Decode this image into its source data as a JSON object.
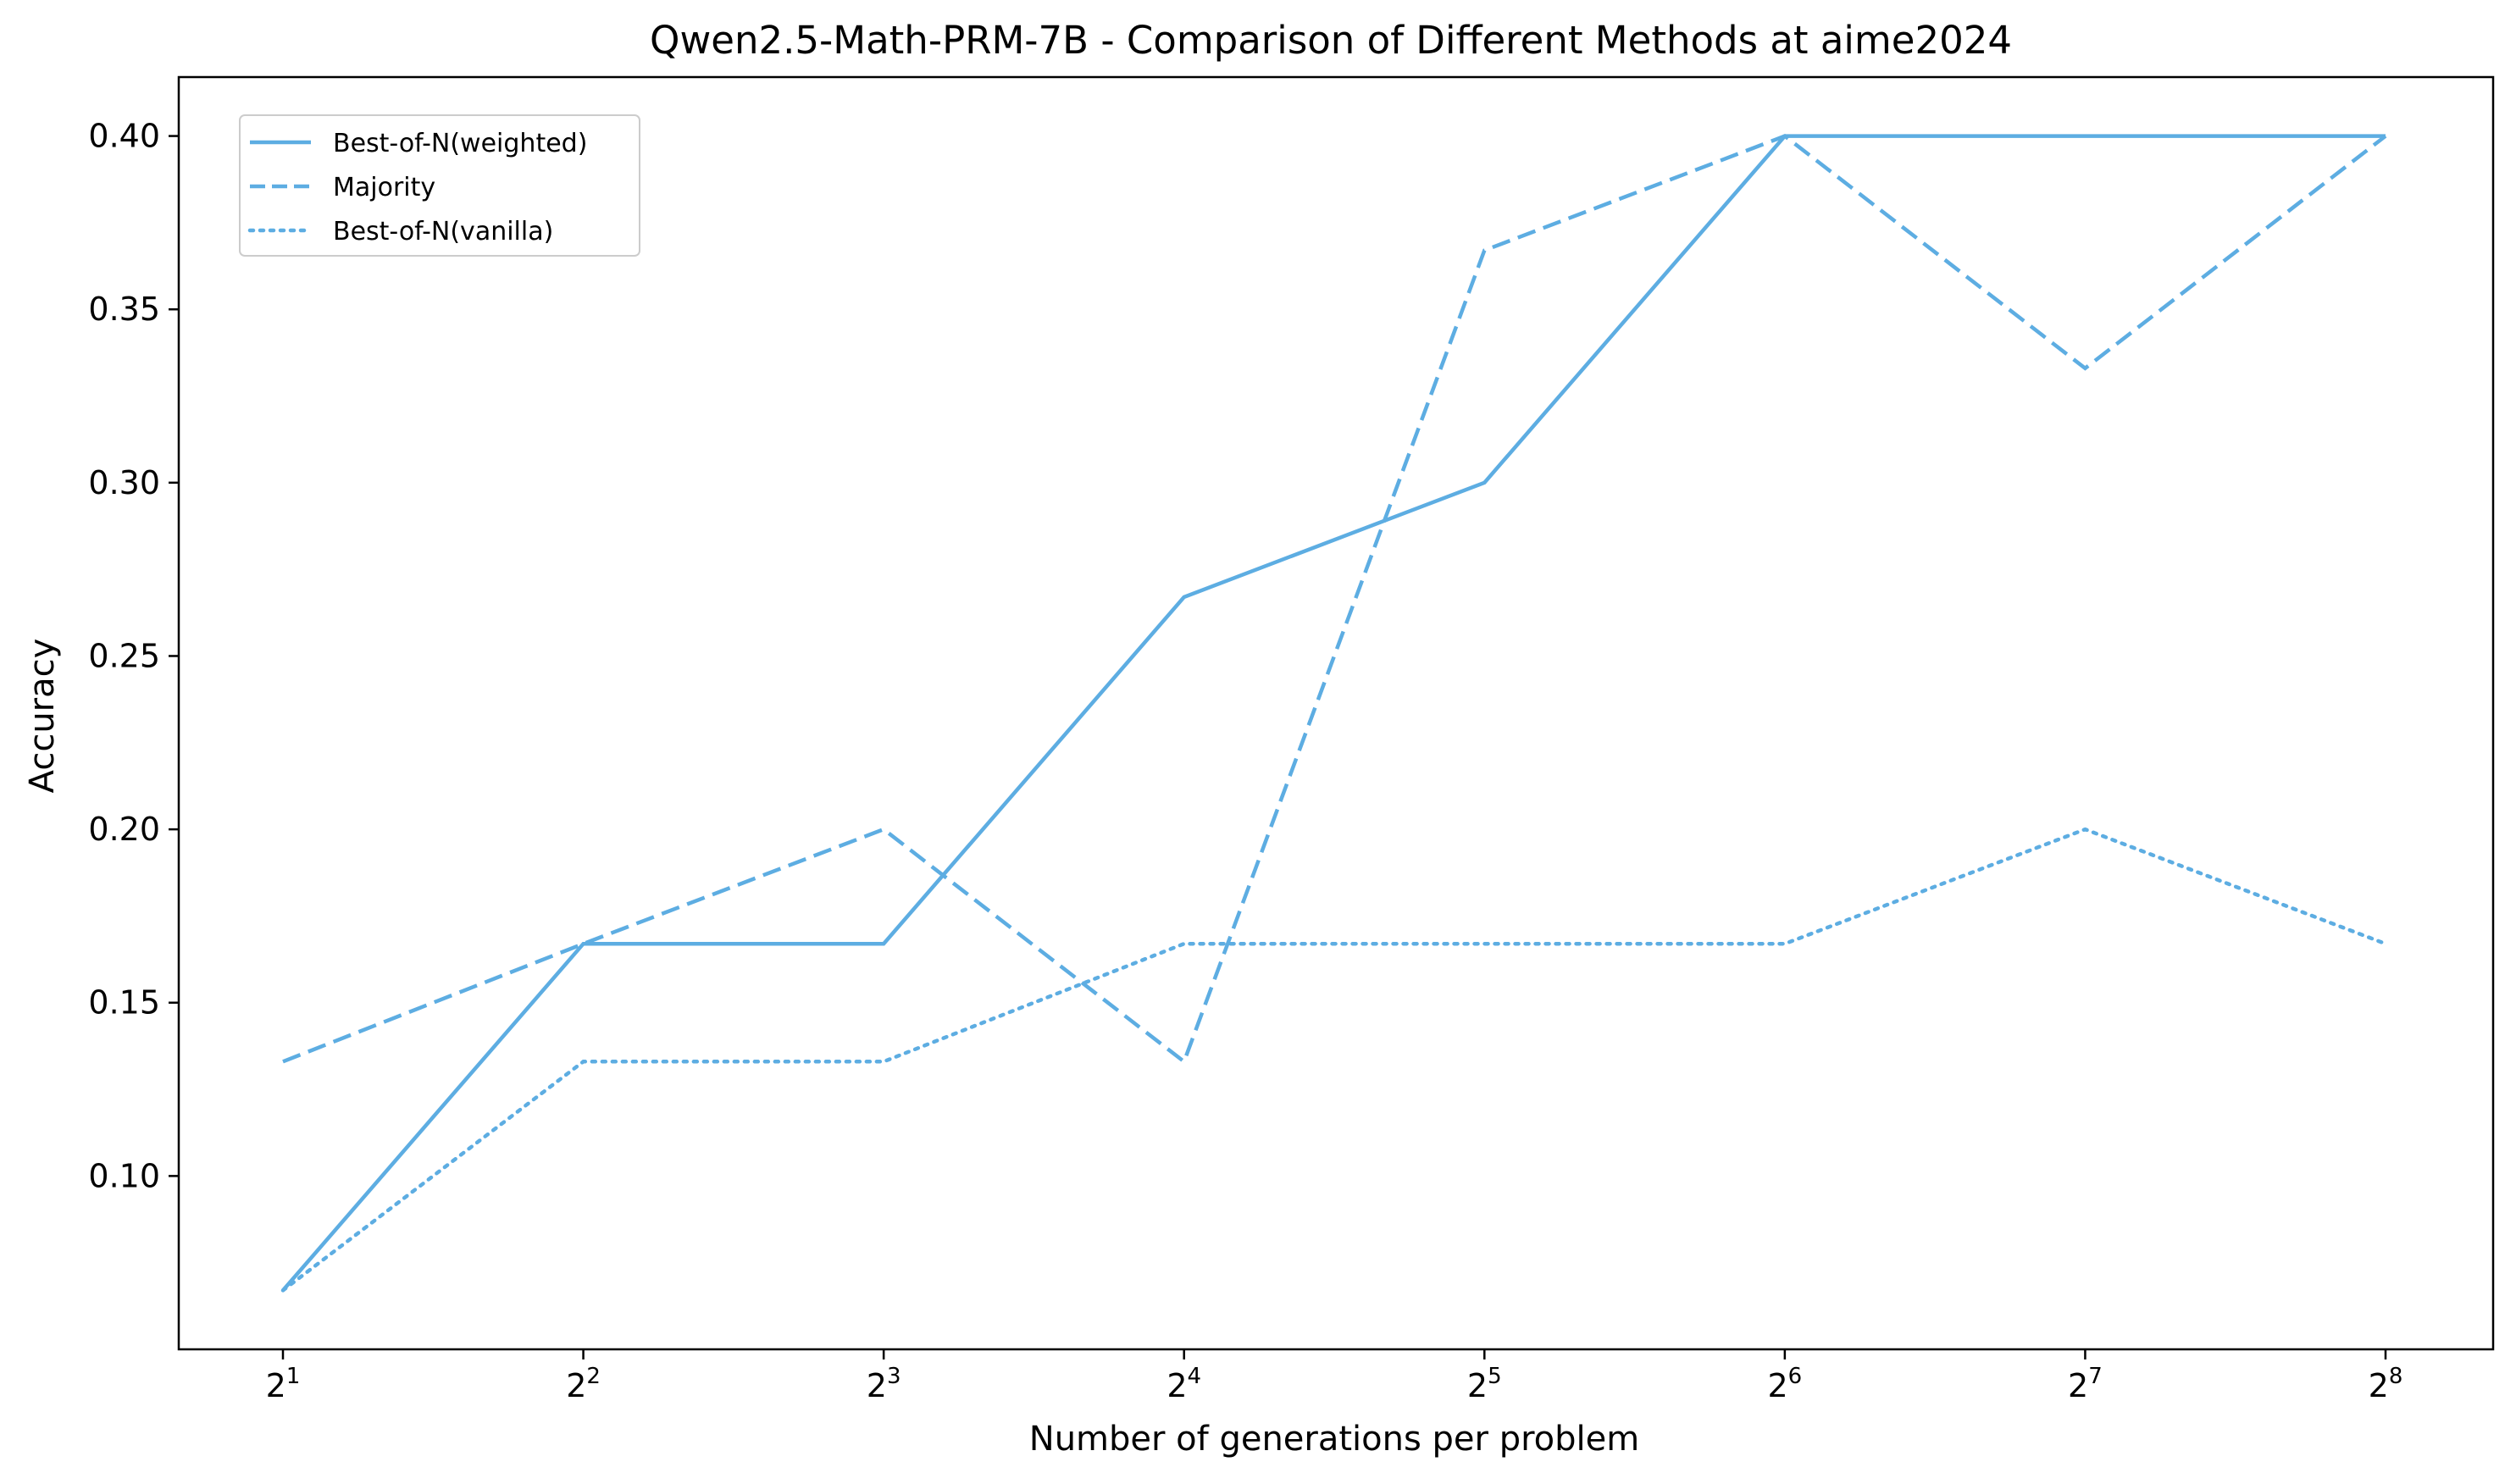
{
  "chart_data": {
    "type": "line",
    "title": "Qwen2.5-Math-PRM-7B - Comparison of Different Methods at aime2024",
    "xlabel": "Number of generations per problem",
    "ylabel": "Accuracy",
    "x": [
      {
        "base": "2",
        "exp": "1"
      },
      {
        "base": "2",
        "exp": "2"
      },
      {
        "base": "2",
        "exp": "3"
      },
      {
        "base": "2",
        "exp": "4"
      },
      {
        "base": "2",
        "exp": "5"
      },
      {
        "base": "2",
        "exp": "6"
      },
      {
        "base": "2",
        "exp": "7"
      },
      {
        "base": "2",
        "exp": "8"
      }
    ],
    "ylim": [
      0.05,
      0.417
    ],
    "yticks": [
      "0.10",
      "0.15",
      "0.20",
      "0.25",
      "0.30",
      "0.35",
      "0.40"
    ],
    "grid": false,
    "legend_position": "top-left",
    "color": "#5DADE2",
    "series": [
      {
        "name": "Best-of-N(weighted)",
        "style": "solid",
        "values": [
          0.067,
          0.167,
          0.167,
          0.267,
          0.3,
          0.4,
          0.4,
          0.4
        ]
      },
      {
        "name": "Majority",
        "style": "dashed",
        "values": [
          0.133,
          0.167,
          0.2,
          0.133,
          0.367,
          0.4,
          0.333,
          0.4
        ]
      },
      {
        "name": "Best-of-N(vanilla)",
        "style": "dotted",
        "values": [
          0.067,
          0.133,
          0.133,
          0.167,
          0.167,
          0.167,
          0.2,
          0.167
        ]
      }
    ]
  }
}
